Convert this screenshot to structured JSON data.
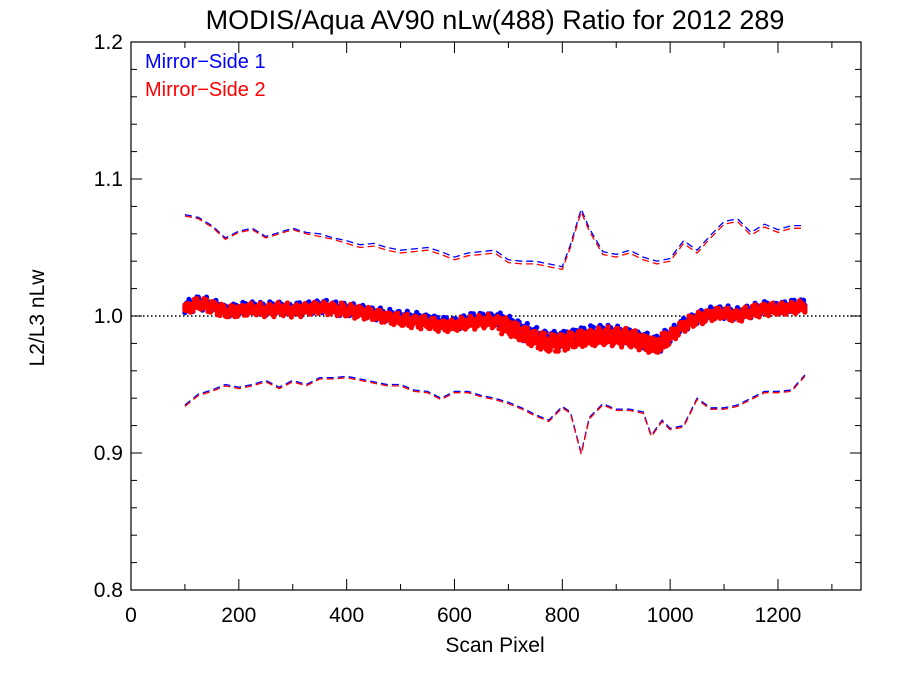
{
  "chart_data": {
    "type": "line",
    "title": "MODIS/Aqua AV90 nLw(488) Ratio for 2012 289",
    "xlabel": "Scan Pixel",
    "ylabel": "L2/L3 nLw",
    "xlim": [
      0,
      1354
    ],
    "ylim": [
      0.8,
      1.2
    ],
    "x_ticks": [
      "0",
      "200",
      "400",
      "600",
      "800",
      "1000",
      "1200"
    ],
    "y_ticks": [
      "0.8",
      "0.9",
      "1.0",
      "1.1",
      "1.2"
    ],
    "grid": false,
    "reference_line": {
      "y": 1.0,
      "style": "dotted",
      "color": "#000000"
    },
    "legend": {
      "position": "top-left",
      "entries": [
        "Mirror−Side 1",
        "Mirror−Side 2"
      ]
    },
    "colors": {
      "ms1": "#0000ff",
      "ms2": "#ff0000"
    },
    "series": [
      {
        "name": "Mirror−Side 1",
        "color": "#0000ff",
        "mean": {
          "x": [
            100,
            125,
            150,
            175,
            200,
            225,
            250,
            275,
            300,
            325,
            350,
            375,
            400,
            425,
            450,
            475,
            500,
            525,
            550,
            575,
            600,
            625,
            650,
            675,
            700,
            725,
            750,
            775,
            800,
            825,
            850,
            875,
            900,
            925,
            950,
            975,
            1000,
            1025,
            1050,
            1075,
            1100,
            1125,
            1150,
            1175,
            1200,
            1225,
            1250
          ],
          "y": [
            1.006,
            1.01,
            1.008,
            1.004,
            1.005,
            1.006,
            1.005,
            1.006,
            1.005,
            1.006,
            1.007,
            1.006,
            1.005,
            1.004,
            1.002,
            1.0,
            0.999,
            0.998,
            0.997,
            0.995,
            0.994,
            0.997,
            0.998,
            0.998,
            0.994,
            0.989,
            0.985,
            0.982,
            0.983,
            0.985,
            0.986,
            0.987,
            0.986,
            0.985,
            0.982,
            0.979,
            0.986,
            0.994,
            0.999,
            1.002,
            1.003,
            1.001,
            1.004,
            1.006,
            1.006,
            1.007,
            1.008
          ]
        },
        "upper": {
          "x": [
            100,
            125,
            150,
            175,
            200,
            225,
            250,
            275,
            300,
            325,
            350,
            375,
            400,
            425,
            450,
            475,
            500,
            525,
            550,
            575,
            600,
            625,
            650,
            675,
            700,
            725,
            750,
            775,
            800,
            815,
            835,
            850,
            875,
            900,
            925,
            950,
            975,
            1000,
            1025,
            1050,
            1075,
            1100,
            1125,
            1150,
            1175,
            1200,
            1225,
            1250
          ],
          "y": [
            1.074,
            1.072,
            1.066,
            1.057,
            1.062,
            1.064,
            1.058,
            1.061,
            1.064,
            1.061,
            1.06,
            1.057,
            1.055,
            1.052,
            1.053,
            1.05,
            1.048,
            1.049,
            1.05,
            1.047,
            1.043,
            1.046,
            1.047,
            1.048,
            1.041,
            1.04,
            1.04,
            1.038,
            1.036,
            1.052,
            1.078,
            1.064,
            1.047,
            1.045,
            1.048,
            1.043,
            1.04,
            1.042,
            1.055,
            1.048,
            1.059,
            1.069,
            1.071,
            1.061,
            1.067,
            1.063,
            1.066,
            1.066
          ]
        },
        "lower": {
          "x": [
            100,
            125,
            150,
            175,
            200,
            225,
            250,
            275,
            300,
            325,
            350,
            375,
            400,
            425,
            450,
            475,
            500,
            525,
            550,
            575,
            600,
            625,
            650,
            675,
            700,
            725,
            750,
            775,
            800,
            815,
            835,
            850,
            875,
            900,
            925,
            950,
            965,
            985,
            1000,
            1025,
            1050,
            1075,
            1100,
            1125,
            1150,
            1175,
            1200,
            1225,
            1250
          ],
          "y": [
            0.935,
            0.943,
            0.946,
            0.95,
            0.948,
            0.95,
            0.953,
            0.948,
            0.953,
            0.95,
            0.955,
            0.955,
            0.956,
            0.954,
            0.952,
            0.95,
            0.95,
            0.946,
            0.945,
            0.94,
            0.945,
            0.945,
            0.942,
            0.94,
            0.937,
            0.933,
            0.928,
            0.924,
            0.934,
            0.93,
            0.9,
            0.926,
            0.936,
            0.932,
            0.932,
            0.93,
            0.913,
            0.924,
            0.918,
            0.92,
            0.94,
            0.933,
            0.933,
            0.935,
            0.94,
            0.945,
            0.945,
            0.946,
            0.957
          ]
        }
      },
      {
        "name": "Mirror−Side 2",
        "color": "#ff0000",
        "mean": {
          "x": [
            100,
            125,
            150,
            175,
            200,
            225,
            250,
            275,
            300,
            325,
            350,
            375,
            400,
            425,
            450,
            475,
            500,
            525,
            550,
            575,
            600,
            625,
            650,
            675,
            700,
            725,
            750,
            775,
            800,
            825,
            850,
            875,
            900,
            925,
            950,
            975,
            1000,
            1025,
            1050,
            1075,
            1100,
            1125,
            1150,
            1175,
            1200,
            1225,
            1250
          ],
          "y": [
            1.005,
            1.009,
            1.007,
            1.003,
            1.004,
            1.005,
            1.004,
            1.005,
            1.004,
            1.005,
            1.006,
            1.005,
            1.004,
            1.003,
            1.001,
            0.999,
            0.997,
            0.996,
            0.995,
            0.993,
            0.993,
            0.995,
            0.996,
            0.996,
            0.992,
            0.987,
            0.983,
            0.98,
            0.981,
            0.983,
            0.984,
            0.985,
            0.985,
            0.984,
            0.981,
            0.978,
            0.985,
            0.993,
            0.998,
            1.001,
            1.002,
            1.0,
            1.003,
            1.005,
            1.005,
            1.006,
            1.007
          ]
        },
        "upper": {
          "x": [
            100,
            125,
            150,
            175,
            200,
            225,
            250,
            275,
            300,
            325,
            350,
            375,
            400,
            425,
            450,
            475,
            500,
            525,
            550,
            575,
            600,
            625,
            650,
            675,
            700,
            725,
            750,
            775,
            800,
            815,
            835,
            850,
            875,
            900,
            925,
            950,
            975,
            1000,
            1025,
            1050,
            1075,
            1100,
            1125,
            1150,
            1175,
            1200,
            1225,
            1250
          ],
          "y": [
            1.073,
            1.071,
            1.065,
            1.056,
            1.061,
            1.063,
            1.057,
            1.06,
            1.063,
            1.06,
            1.058,
            1.056,
            1.053,
            1.05,
            1.051,
            1.048,
            1.046,
            1.047,
            1.048,
            1.045,
            1.041,
            1.044,
            1.045,
            1.046,
            1.039,
            1.038,
            1.038,
            1.036,
            1.034,
            1.05,
            1.076,
            1.062,
            1.045,
            1.043,
            1.046,
            1.041,
            1.038,
            1.04,
            1.053,
            1.046,
            1.057,
            1.067,
            1.069,
            1.059,
            1.065,
            1.061,
            1.064,
            1.064
          ]
        },
        "lower": {
          "x": [
            100,
            125,
            150,
            175,
            200,
            225,
            250,
            275,
            300,
            325,
            350,
            375,
            400,
            425,
            450,
            475,
            500,
            525,
            550,
            575,
            600,
            625,
            650,
            675,
            700,
            725,
            750,
            775,
            800,
            815,
            835,
            850,
            875,
            900,
            925,
            950,
            965,
            985,
            1000,
            1025,
            1050,
            1075,
            1100,
            1125,
            1150,
            1175,
            1200,
            1225,
            1250
          ],
          "y": [
            0.934,
            0.942,
            0.945,
            0.949,
            0.947,
            0.949,
            0.952,
            0.947,
            0.952,
            0.949,
            0.954,
            0.954,
            0.955,
            0.953,
            0.951,
            0.949,
            0.949,
            0.945,
            0.944,
            0.939,
            0.944,
            0.944,
            0.941,
            0.939,
            0.936,
            0.932,
            0.927,
            0.923,
            0.933,
            0.929,
            0.899,
            0.925,
            0.935,
            0.931,
            0.931,
            0.929,
            0.912,
            0.923,
            0.917,
            0.919,
            0.939,
            0.932,
            0.932,
            0.934,
            0.939,
            0.944,
            0.944,
            0.945,
            0.956
          ]
        }
      }
    ]
  }
}
